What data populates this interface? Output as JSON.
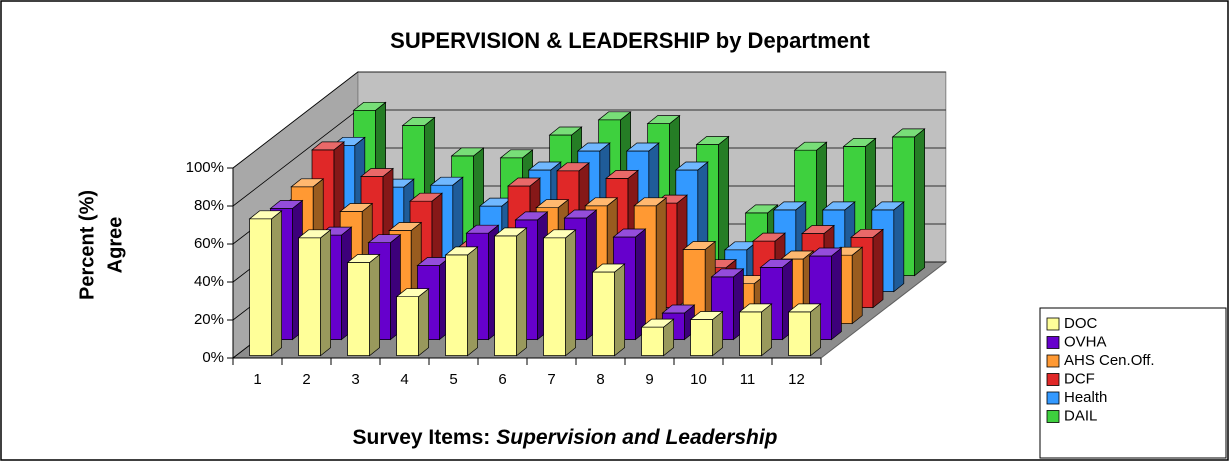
{
  "chart_data": {
    "type": "bar3d",
    "title": "SUPERVISION & LEADERSHIP by Department",
    "y_label": [
      "Percent (%)",
      "Agree"
    ],
    "x_label": [
      "Survey Items:",
      "Supervision and Leadership"
    ],
    "categories": [
      "1",
      "2",
      "3",
      "4",
      "5",
      "6",
      "7",
      "8",
      "9",
      "10",
      "11",
      "12"
    ],
    "ylim": [
      0,
      100
    ],
    "yticks": [
      {
        "value": 0,
        "label": "0%"
      },
      {
        "value": 20,
        "label": "20%"
      },
      {
        "value": 40,
        "label": "40%"
      },
      {
        "value": 60,
        "label": "60%"
      },
      {
        "value": 80,
        "label": "80%"
      },
      {
        "value": 100,
        "label": "100%"
      }
    ],
    "grid": true,
    "legend": "right",
    "series": [
      {
        "name": "DOC",
        "color": "#ffff99",
        "values": [
          72,
          62,
          49,
          31,
          53,
          63,
          62,
          44,
          15,
          19,
          23,
          23
        ]
      },
      {
        "name": "OVHA",
        "color": "#6600cc",
        "values": [
          69,
          55,
          51,
          39,
          56,
          63,
          64,
          54,
          14,
          33,
          38,
          44
        ]
      },
      {
        "name": "AHS Cen.Off.",
        "color": "#ff9933",
        "values": [
          72,
          59,
          49,
          32,
          36,
          61,
          62,
          62,
          39,
          21,
          34,
          36
        ]
      },
      {
        "name": "DCF",
        "color": "#e02828",
        "values": [
          83,
          69,
          56,
          32,
          64,
          72,
          68,
          55,
          21,
          35,
          39,
          37
        ]
      },
      {
        "name": "Health",
        "color": "#3399ff",
        "values": [
          77,
          55,
          56,
          45,
          64,
          74,
          74,
          64,
          22,
          43,
          43,
          43
        ]
      },
      {
        "name": "DAIL",
        "color": "#3ed03e",
        "values": [
          87,
          79,
          63,
          62,
          74,
          82,
          80,
          69,
          33,
          66,
          68,
          73
        ]
      }
    ]
  }
}
